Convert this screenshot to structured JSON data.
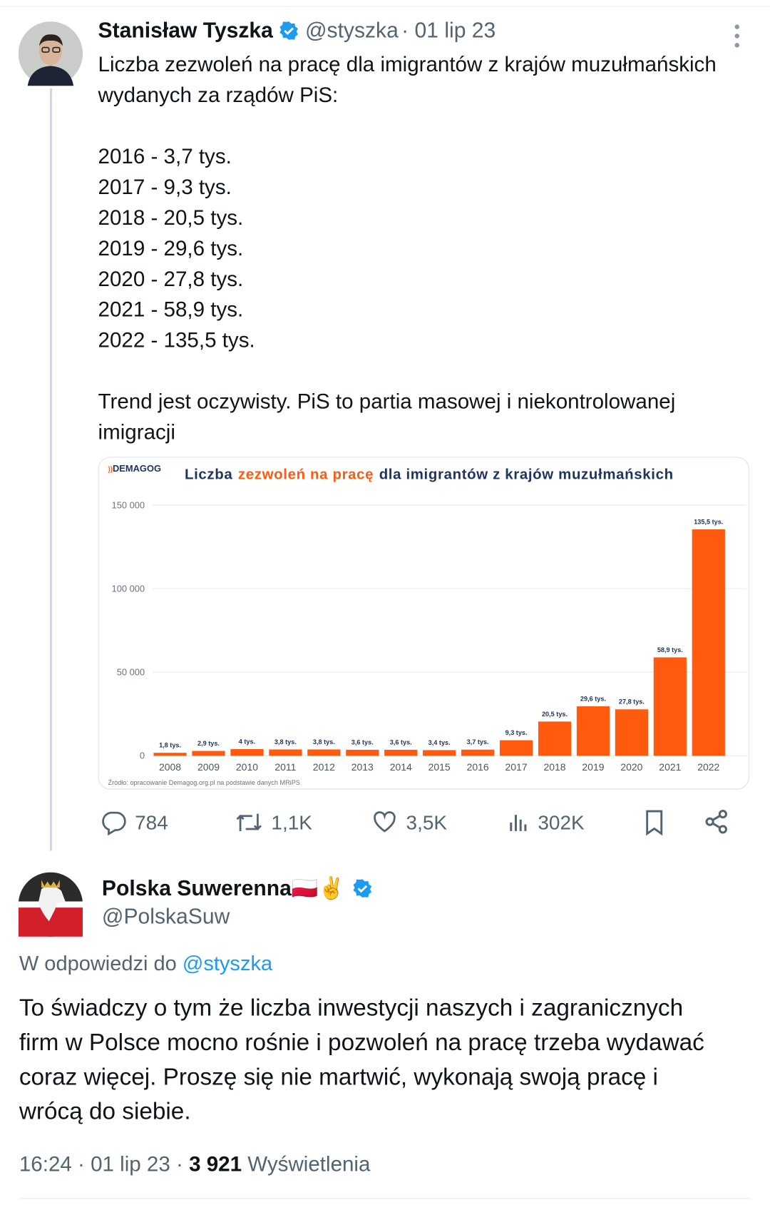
{
  "tweet": {
    "author": "Stanisław Tyszka",
    "handle": "@styszka",
    "date": "· 01 lip 23",
    "intro": "Liczba zezwoleń na pracę dla imigrantów z krajów muzułmańskich wydanych za rządów PiS:",
    "list": [
      "2016 - 3,7 tys.",
      "2017 - 9,3 tys.",
      "2018 - 20,5 tys.",
      "2019 - 29,6 tys.",
      "2020 - 27,8 tys.",
      "2021 - 58,9 tys.",
      "2022 - 135,5 tys."
    ],
    "conclusion": "Trend jest oczywisty. PiS to partia masowej i niekontrolowanej imigracji",
    "stats": {
      "replies": "784",
      "retweets": "1,1K",
      "likes": "3,5K",
      "views": "302K"
    }
  },
  "chart_data": {
    "type": "bar",
    "brand": "DEMAGOG",
    "title": [
      "Liczba",
      "zezwoleń na pracę",
      "dla imigrantów z krajów muzułmańskich"
    ],
    "source": "Źródło: opracowanie Demagog.org.pl na podstawie danych MRiPS",
    "categories": [
      "2008",
      "2009",
      "2010",
      "2011",
      "2012",
      "2013",
      "2014",
      "2015",
      "2016",
      "2017",
      "2018",
      "2019",
      "2020",
      "2021",
      "2022"
    ],
    "values": [
      1800,
      2900,
      4000,
      3800,
      3800,
      3600,
      3600,
      3400,
      3700,
      9300,
      20500,
      29600,
      27800,
      58900,
      135500
    ],
    "value_labels": [
      "1,8 tys.",
      "2,9 tys.",
      "4 tys.",
      "3,8 tys.",
      "3,8 tys.",
      "3,6 tys.",
      "3,6 tys.",
      "3,4 tys.",
      "3,7 tys.",
      "9,3 tys.",
      "20,5 tys.",
      "29,6 tys.",
      "27,8 tys.",
      "58,9 tys.",
      "135,5 tys."
    ],
    "color": "#ff5a0e",
    "ylim": [
      0,
      150000
    ],
    "yticks": [
      0,
      {
        "value": 50000,
        "label": "50 000"
      },
      {
        "value": 100000,
        "label": "100 000"
      },
      {
        "value": 150000,
        "label": "150 000"
      }
    ],
    "grid": true
  },
  "reply": {
    "author": "Polska Suwerenna🇵🇱✌️",
    "handle": "@PolskaSuw",
    "in_reply_to": "W odpowiedzi do",
    "in_reply_handle": "@styszka",
    "text": "To świadczy o tym że liczba inwestycji naszych i zagranicznych firm w Polsce mocno rośnie i pozwoleń na pracę trzeba wydawać coraz więcej. Proszę się nie martwić, wykonają swoją pracę i wrócą do siebie.",
    "time": "16:24 · 01 lip 23",
    "views": "3 921",
    "views_label": "Wyświetlenia"
  }
}
